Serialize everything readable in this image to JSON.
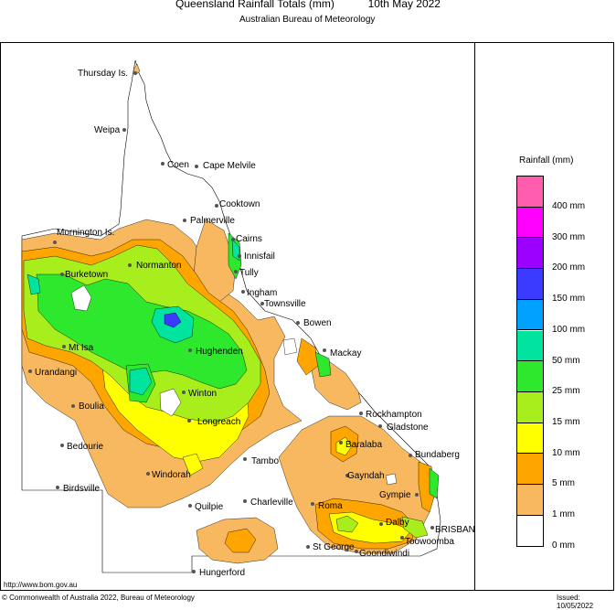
{
  "header": {
    "title": "Queensland Rainfall Totals (mm)",
    "date": "10th May 2022",
    "subtitle": "Australian Bureau of Meteorology"
  },
  "legend": {
    "title": "Rainfall (mm)",
    "levels": [
      {
        "label": "400 mm",
        "color": "#ff5cae"
      },
      {
        "label": "300 mm",
        "color": "#ff00ff"
      },
      {
        "label": "200 mm",
        "color": "#9c00ff"
      },
      {
        "label": "150 mm",
        "color": "#3b3bff"
      },
      {
        "label": "100 mm",
        "color": "#00a0ff"
      },
      {
        "label": "50 mm",
        "color": "#00e4a0"
      },
      {
        "label": "25 mm",
        "color": "#2ee82e"
      },
      {
        "label": "15 mm",
        "color": "#a8ee1c"
      },
      {
        "label": "10 mm",
        "color": "#ffff00"
      },
      {
        "label": "5 mm",
        "color": "#ffa500"
      },
      {
        "label": "1 mm",
        "color": "#f8b860"
      },
      {
        "label": "0 mm",
        "color": "#ffffff"
      }
    ]
  },
  "places": [
    {
      "name": "Thursday Is."
    },
    {
      "name": "Weipa"
    },
    {
      "name": "Coen"
    },
    {
      "name": "Cape Melvile"
    },
    {
      "name": "Cooktown"
    },
    {
      "name": "Palmerville"
    },
    {
      "name": "Mornington Is."
    },
    {
      "name": "Cairns"
    },
    {
      "name": "Innisfail"
    },
    {
      "name": "Normanton"
    },
    {
      "name": "Tully"
    },
    {
      "name": "Burketown"
    },
    {
      "name": "Ingham"
    },
    {
      "name": "Townsville"
    },
    {
      "name": "Bowen"
    },
    {
      "name": "Mt Isa"
    },
    {
      "name": "Hughenden"
    },
    {
      "name": "Mackay"
    },
    {
      "name": "Urandangi"
    },
    {
      "name": "Boulia"
    },
    {
      "name": "Winton"
    },
    {
      "name": "Rockhampton"
    },
    {
      "name": "Gladstone"
    },
    {
      "name": "Longreach"
    },
    {
      "name": "Bedourie"
    },
    {
      "name": "Baralaba"
    },
    {
      "name": "Bundaberg"
    },
    {
      "name": "Tambo"
    },
    {
      "name": "Windorah"
    },
    {
      "name": "Gayndah"
    },
    {
      "name": "Birdsville"
    },
    {
      "name": "Gympie"
    },
    {
      "name": "Charleville"
    },
    {
      "name": "Roma"
    },
    {
      "name": "Quilpie"
    },
    {
      "name": "Dalby"
    },
    {
      "name": "BRISBANE"
    },
    {
      "name": "Toowoomba"
    },
    {
      "name": "St George"
    },
    {
      "name": "Goondiwindi"
    },
    {
      "name": "Hungerford"
    }
  ],
  "footer": {
    "url": "http://www.bom.gov.au",
    "copyright": "© Commonwealth of Australia 2022, Bureau of Meteorology",
    "issued": "Issued: 10/05/2022"
  }
}
